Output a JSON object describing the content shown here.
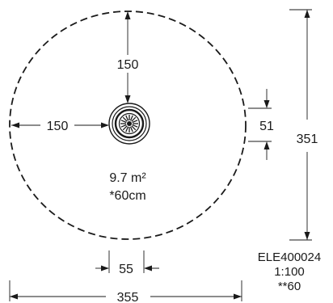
{
  "dimensions": {
    "top_clearance": "150",
    "left_clearance": "150",
    "right_offset": "51",
    "height_total": "351",
    "fixture_width": "55",
    "width_total": "355"
  },
  "area": {
    "value": "9.7 m²",
    "depth": "*60cm"
  },
  "info": {
    "code": "ELE400024",
    "scale": "1:100",
    "note": "**60"
  }
}
